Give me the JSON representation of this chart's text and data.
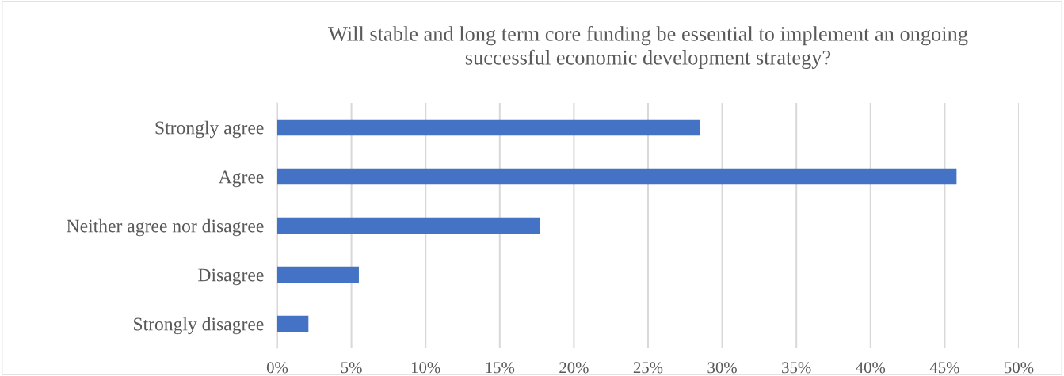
{
  "chart_data": {
    "type": "bar",
    "orientation": "horizontal",
    "title": "Will stable and long term core funding be essential to implement an ongoing\nsuccessful economic development strategy?",
    "categories": [
      "Strongly agree",
      "Agree",
      "Neither agree nor disagree",
      "Disagree",
      "Strongly disagree"
    ],
    "values": [
      28.5,
      45.8,
      17.7,
      5.5,
      2.1
    ],
    "color": "#4472c4",
    "xlim": [
      0,
      50
    ],
    "xticks": [
      {
        "value": 0,
        "label": "0%"
      },
      {
        "value": 5,
        "label": "5%"
      },
      {
        "value": 10,
        "label": "10%"
      },
      {
        "value": 15,
        "label": "15%"
      },
      {
        "value": 20,
        "label": "20%"
      },
      {
        "value": 25,
        "label": "25%"
      },
      {
        "value": 30,
        "label": "30%"
      },
      {
        "value": 35,
        "label": "35%"
      },
      {
        "value": 40,
        "label": "40%"
      },
      {
        "value": 45,
        "label": "45%"
      },
      {
        "value": 50,
        "label": "50%"
      }
    ],
    "grid": "x",
    "legend": false
  }
}
